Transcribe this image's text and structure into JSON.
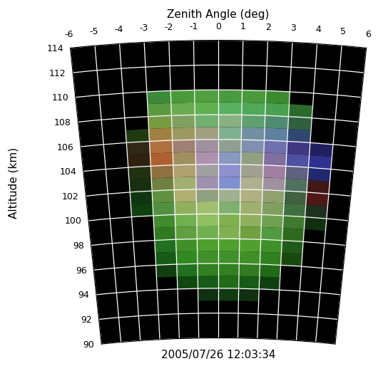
{
  "chart_data": {
    "type": "heatmap",
    "xlabel": "Zenith Angle (deg)",
    "ylabel": "Altitude (km)",
    "annotation": "2005/07/26 12:03:34",
    "xlim": [
      -6,
      6
    ],
    "ylim": [
      90,
      114
    ],
    "xticks": [
      -6,
      -5,
      -4,
      -3,
      -2,
      -1,
      0,
      1,
      2,
      3,
      4,
      5,
      6
    ],
    "yticks": [
      90,
      92,
      94,
      96,
      98,
      100,
      102,
      104,
      106,
      108,
      110,
      112,
      114
    ],
    "grid": true,
    "x_edges": [
      -4,
      -3,
      -2,
      -1,
      0,
      1,
      2,
      3,
      4,
      5,
      6
    ],
    "y_edges": [
      93,
      94,
      95,
      96,
      97,
      98,
      99,
      100,
      101,
      102,
      103,
      104,
      105,
      106,
      107,
      108,
      109,
      110
    ],
    "cells": [
      [
        null,
        null,
        null,
        "#103010",
        "#103a10",
        "#103010",
        null,
        null,
        null,
        null
      ],
      [
        null,
        null,
        "#104810",
        "#185a18",
        "#206a18",
        "#185a18",
        "#104010",
        null,
        null,
        null
      ],
      [
        null,
        "#104010",
        "#207020",
        "#308020",
        "#308020",
        "#307a20",
        "#206a18",
        null,
        null,
        null
      ],
      [
        null,
        "#185a18",
        "#308a20",
        "#40902a",
        "#40902a",
        "#40902a",
        "#308020",
        "#184a10",
        null,
        null
      ],
      [
        null,
        "#207020",
        "#40902a",
        "#50a030",
        "#50a030",
        "#50a030",
        "#40902a",
        "#205a18",
        null,
        null
      ],
      [
        null,
        "#307a20",
        "#60a040",
        "#70b050",
        "#80b050",
        "#70a040",
        "#509a40",
        "#306a20",
        null,
        null
      ],
      [
        null,
        "#408a30",
        "#70b050",
        "#90c060",
        "#80b050",
        "#90b060",
        "#70a050",
        "#407a30",
        "#103010",
        null
      ],
      [
        "#104010",
        "#509040",
        "#90b060",
        "#a0c070",
        "#80b070",
        "#a0b070",
        "#80a060",
        "#407040",
        "#203020",
        null
      ],
      [
        "#103810",
        "#609040",
        "#b0b070",
        "#90a080",
        "#a0b090",
        "#b0b080",
        "#90a070",
        "#406040",
        "#501818",
        null
      ],
      [
        "#183010",
        "#708040",
        "#a0b070",
        "#a090b0",
        "#8090d0",
        "#b0b090",
        "#a090a0",
        "#507060",
        "#401818",
        null
      ],
      [
        "#203010",
        "#907040",
        "#b0a070",
        "#a0a0a0",
        "#9090d0",
        "#a0a090",
        "#a080a0",
        "#606080",
        "#202870",
        null
      ],
      [
        "#302010",
        "#b06030",
        "#a09060",
        "#b090b0",
        "#8898c0",
        "#90a080",
        "#8070a0",
        "#5050a0",
        "#303090",
        null
      ],
      [
        "#302818",
        "#b07040",
        "#a08070",
        "#a090a0",
        "#90a090",
        "#8090b0",
        "#7070b0",
        "#403880",
        "#202060",
        null
      ],
      [
        "#203a10",
        "#a08040",
        "#9a9a60",
        "#a0a080",
        "#80b090",
        "#7090a0",
        "#6080a0",
        "#304870",
        null,
        null
      ],
      [
        null,
        "#7a9a40",
        "#80a060",
        "#70b070",
        "#88b080",
        "#60a070",
        "#508a70",
        "#306040",
        null,
        null
      ],
      [
        null,
        "#5a9a40",
        "#6aaa50",
        "#60b050",
        "#58b060",
        "#50a858",
        "#48a050",
        "#2a6a2a",
        null,
        null
      ],
      [
        null,
        "#3a8a3a",
        "#4a9a3a",
        "#50a040",
        "#4a9a40",
        "#4a9a3a",
        "#3a8a30",
        null,
        null,
        null
      ]
    ]
  }
}
